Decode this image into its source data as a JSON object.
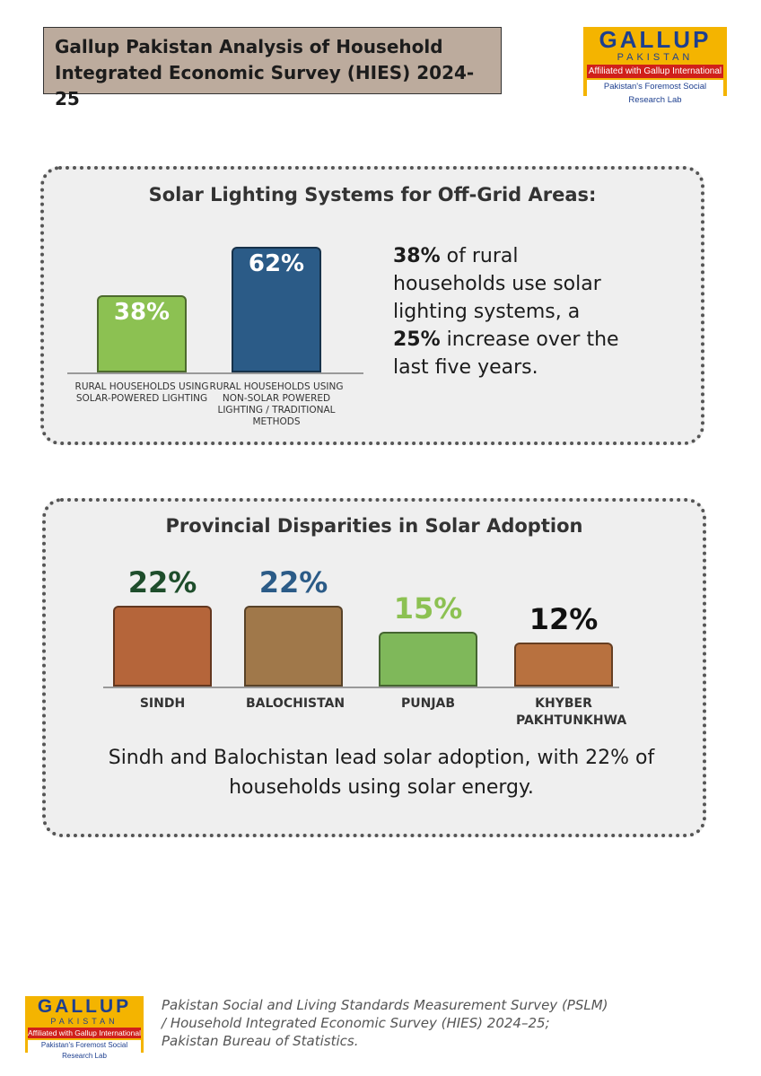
{
  "header": {
    "title": "Gallup Pakistan Analysis of Household Integrated Economic Survey (HIES) 2024-25"
  },
  "logo": {
    "name": "GALLUP",
    "country": "PAKISTAN",
    "affiliation": "Affiliated with Gallup International",
    "tagline": "Pakistan's Foremost Social Research Lab"
  },
  "chart_data": [
    {
      "type": "bar",
      "title": "Solar Lighting Systems for Off-Grid Areas:",
      "categories": [
        "RURAL HOUSEHOLDS USING SOLAR-POWERED LIGHTING",
        "RURAL HOUSEHOLDS USING NON-SOLAR POWERED LIGHTING / TRADITIONAL METHODS"
      ],
      "values": [
        38,
        62
      ],
      "value_labels": [
        "38%",
        "62%"
      ],
      "colors": [
        "#8cc152",
        "#2b5b87"
      ],
      "label_colors": [
        "#ffffff",
        "#ffffff"
      ]
    },
    {
      "type": "bar",
      "title": "Provincial Disparities in Solar Adoption",
      "categories": [
        "SINDH",
        "BALOCHISTAN",
        "PUNJAB",
        "KHYBER PAKHTUNKHWA"
      ],
      "values": [
        22,
        22,
        15,
        12
      ],
      "value_labels": [
        "22%",
        "22%",
        "15%",
        "12%"
      ],
      "colors": [
        "#b5653a",
        "#a0784a",
        "#7fb85a",
        "#b8713f"
      ],
      "label_colors": [
        "#1e4d2b",
        "#2b5b87",
        "#8cc152",
        "#111111"
      ]
    }
  ],
  "summary": {
    "parts": [
      {
        "text": "38%",
        "bold": true
      },
      {
        "text": " of rural households use solar lighting systems, a ",
        "bold": false
      },
      {
        "text": "25%",
        "bold": true
      },
      {
        "text": " increase over the last five years.",
        "bold": false
      }
    ]
  },
  "caption": "Sindh and Balochistan lead solar adoption, with 22% of households using solar energy.",
  "source": "Pakistan Social and Living Standards Measurement Survey (PSLM) / Household Integrated Economic Survey (HIES) 2024–25; Pakistan Bureau of Statistics."
}
